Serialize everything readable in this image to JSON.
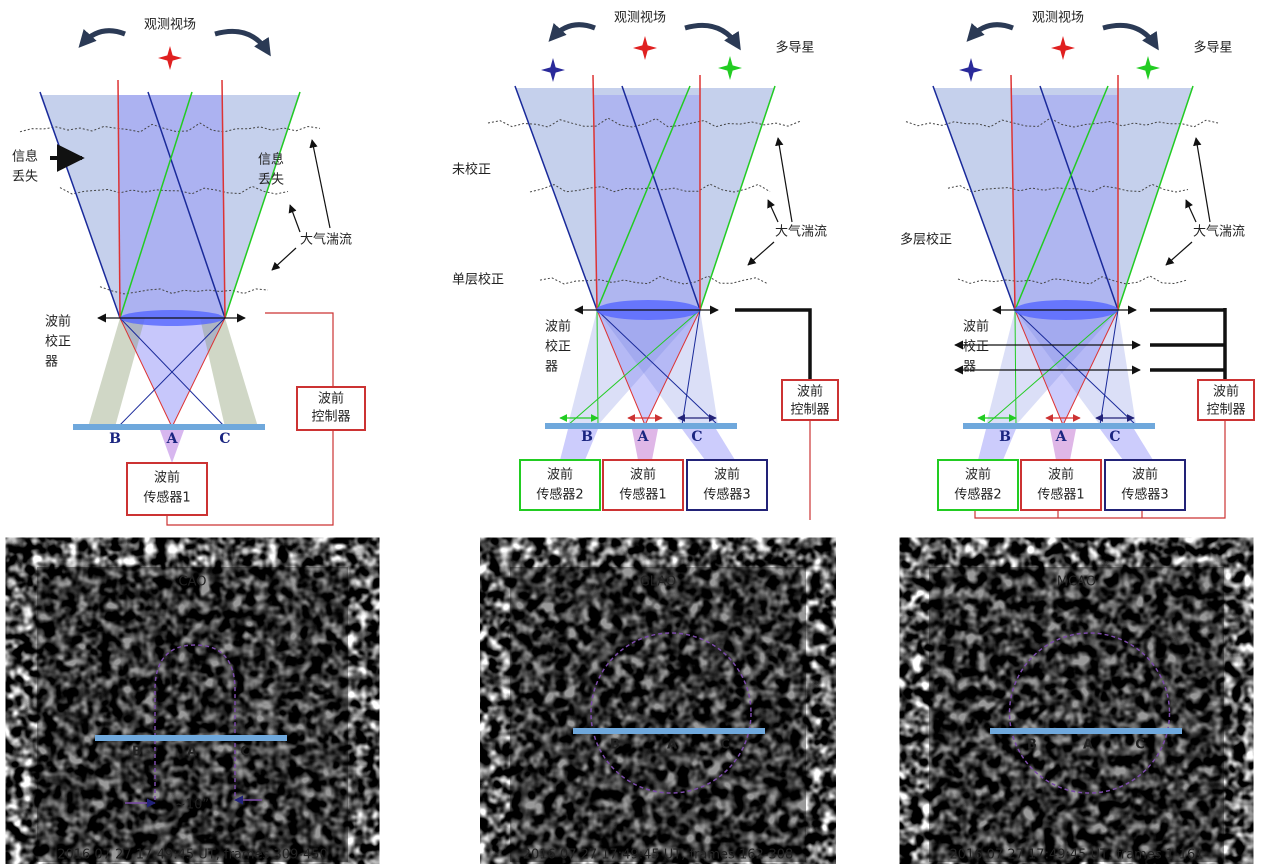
{
  "panels": [
    {
      "field": "观测视场",
      "info_loss_left": [
        "信息",
        "丢失"
      ],
      "info_loss_right": [
        "信息",
        "丢失"
      ],
      "turbulence": "大气湍流",
      "corrector": [
        "波前",
        "校正",
        "器"
      ],
      "controller": [
        "波前",
        "控制器"
      ],
      "points": [
        "B",
        "A",
        "C"
      ],
      "sensors": [
        [
          "波前",
          "传感器1"
        ]
      ],
      "image": {
        "title": "CAO",
        "scale": "~10”",
        "footer": "2016 07 27 17:49:45 UT, frames 309-450",
        "points": [
          "B",
          "A",
          "C"
        ]
      }
    },
    {
      "field": "观测视场",
      "multi_star": "多导星",
      "uncorrected": "未校正",
      "single_layer": "单层校正",
      "turbulence": "大气湍流",
      "corrector": [
        "波前",
        "校正",
        "器"
      ],
      "controller": [
        "波前",
        "控制器"
      ],
      "points": [
        "B",
        "A",
        "C"
      ],
      "sensors": [
        [
          "波前",
          "传感器2"
        ],
        [
          "波前",
          "传感器1"
        ],
        [
          "波前",
          "传感器3"
        ]
      ],
      "image": {
        "title": "GLAO",
        "footer": "2016 07 27 17:49:45 UT, frames 162-308",
        "points": [
          "B",
          "A",
          "C"
        ]
      }
    },
    {
      "field": "观测视场",
      "multi_star": "多导星",
      "multi_layer": "多层校正",
      "turbulence": "大气湍流",
      "corrector": [
        "波前",
        "校正",
        "器"
      ],
      "controller": [
        "波前",
        "控制器"
      ],
      "points": [
        "B",
        "A",
        "C"
      ],
      "sensors": [
        [
          "波前",
          "传感器2"
        ],
        [
          "波前",
          "传感器1"
        ],
        [
          "波前",
          "传感器3"
        ]
      ],
      "image": {
        "title": "MCAO",
        "footer": "2016 07 27 17:49:45 UT, frames 1-161",
        "points": [
          "B",
          "A",
          "C"
        ]
      }
    }
  ]
}
